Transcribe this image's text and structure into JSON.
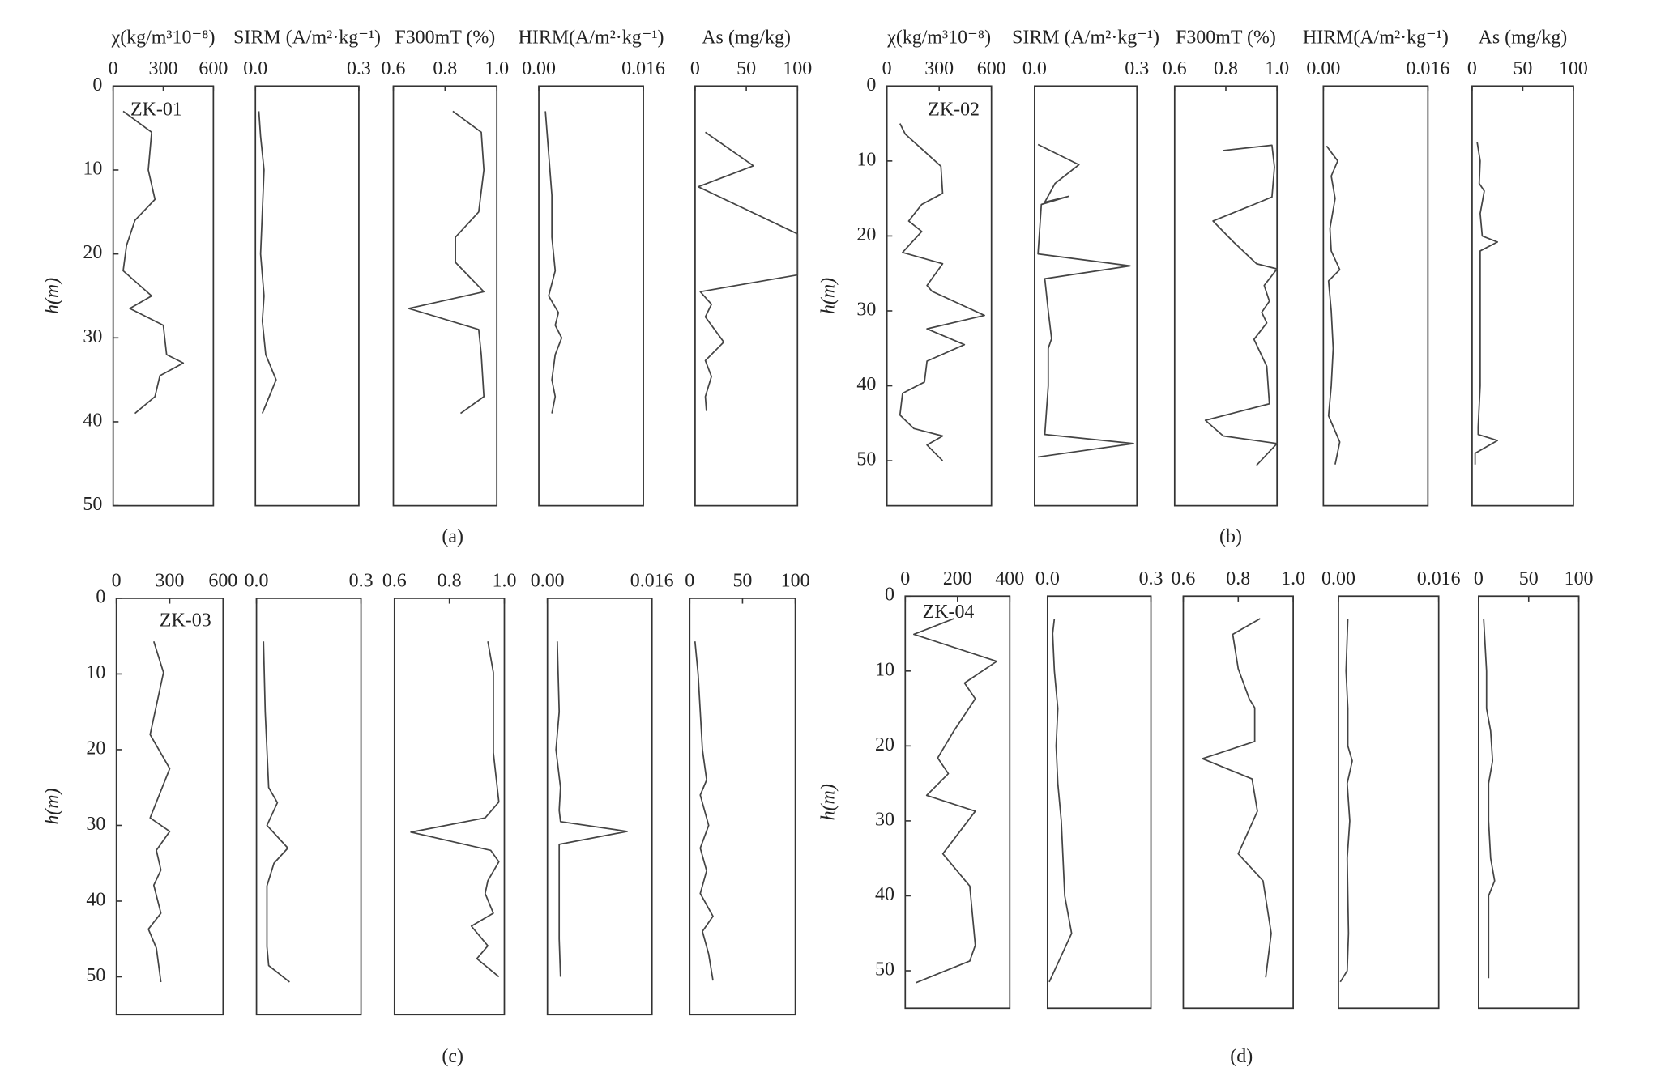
{
  "chart_data": [
    {
      "type": "line",
      "panel": "(a)",
      "well": "ZK-01",
      "ylabel": "h(m)",
      "ylim": [
        0,
        50
      ],
      "yticks": [
        0,
        10,
        20,
        30,
        40,
        50
      ],
      "tracks": [
        {
          "xlabel": "χ(kg/m³10⁻⁸)",
          "xlim": [
            0,
            600
          ],
          "xticks": [
            0,
            300,
            600
          ],
          "depth": [
            3,
            5.5,
            10,
            13.5,
            16,
            19,
            22,
            25,
            26.5,
            28.5,
            32,
            33,
            34.5,
            37,
            39
          ],
          "values": [
            60,
            230,
            210,
            250,
            130,
            80,
            60,
            230,
            100,
            300,
            320,
            420,
            280,
            250,
            130
          ]
        },
        {
          "xlabel": "SIRM (A/m²·kg⁻¹)",
          "xlim": [
            0,
            0.3
          ],
          "xticks": [
            {
              "value": 0,
              "label": "0.0"
            },
            0.3
          ],
          "depth": [
            3,
            6,
            10,
            15,
            20,
            25,
            28,
            32,
            35,
            37,
            39
          ],
          "values": [
            0.01,
            0.015,
            0.025,
            0.02,
            0.015,
            0.025,
            0.02,
            0.03,
            0.06,
            0.04,
            0.02
          ]
        },
        {
          "xlabel": "F300mT (%)",
          "xlim": [
            0.6,
            1.0
          ],
          "xticks": [
            0.6,
            0.8,
            {
              "value": 1.0,
              "label": "1.0"
            }
          ],
          "depth": [
            3,
            5.5,
            10,
            15,
            18,
            21,
            24.5,
            26.5,
            29,
            32,
            37,
            39
          ],
          "values": [
            0.83,
            0.94,
            0.95,
            0.93,
            0.84,
            0.84,
            0.95,
            0.66,
            0.93,
            0.94,
            0.95,
            0.86
          ]
        },
        {
          "xlabel": "HIRM(A/m²·kg⁻¹)",
          "xlim": [
            0,
            0.016
          ],
          "xticks": [
            {
              "value": 0,
              "label": "0.00"
            },
            0.016
          ],
          "depth": [
            3,
            8,
            13,
            18,
            22,
            25,
            27,
            28.5,
            30,
            32,
            35,
            37,
            39
          ],
          "values": [
            0.001,
            0.0015,
            0.002,
            0.002,
            0.0025,
            0.0015,
            0.003,
            0.0025,
            0.0035,
            0.0025,
            0.002,
            0.0025,
            0.002
          ]
        },
        {
          "xlabel": "As (mg/kg)",
          "xlim": [
            0,
            100
          ],
          "xticks": [
            0,
            50,
            100
          ],
          "depth": [
            5.5,
            9.5,
            12,
            17.6,
            22.5,
            24.5,
            26,
            27.5,
            30.5,
            32.7,
            34.6,
            37,
            38.7
          ],
          "values": [
            10,
            57,
            3,
            100,
            100,
            5,
            16,
            10,
            28,
            10,
            16,
            10,
            11
          ]
        }
      ]
    },
    {
      "type": "line",
      "panel": "(b)",
      "well": "ZK-02",
      "ylabel": "h(m)",
      "ylim": [
        0,
        56
      ],
      "yticks": [
        0,
        10,
        20,
        30,
        40,
        50
      ],
      "tracks": [
        {
          "xlabel": "χ(kg/m³10⁻⁸)",
          "xlim": [
            0,
            600
          ],
          "xticks": [
            0,
            300,
            600
          ],
          "depth": [
            5,
            6.4,
            10.7,
            14.3,
            15.8,
            18,
            19.4,
            22.2,
            23.7,
            26.6,
            27.4,
            30.6,
            32.4,
            34.5,
            36.7,
            39.5,
            41,
            43.9,
            45.7,
            46.7,
            47.9,
            50
          ],
          "values": [
            75,
            105,
            310,
            320,
            200,
            125,
            200,
            90,
            320,
            230,
            260,
            560,
            230,
            445,
            230,
            215,
            90,
            75,
            155,
            320,
            230,
            320
          ]
        },
        {
          "xlabel": "SIRM (A/m²·kg⁻¹)",
          "xlim": [
            0,
            0.3
          ],
          "xticks": [
            {
              "value": 0,
              "label": "0.0"
            },
            0.3
          ],
          "depth": [
            7.8,
            10.5,
            13,
            15.5,
            14.7,
            15.8,
            22.4,
            24,
            25.7,
            30,
            33.7,
            35,
            40,
            46.5,
            47.7,
            49.5
          ],
          "values": [
            0.01,
            0.13,
            0.06,
            0.03,
            0.1,
            0.02,
            0.01,
            0.28,
            0.03,
            0.04,
            0.05,
            0.04,
            0.04,
            0.03,
            0.29,
            0.01
          ]
        },
        {
          "xlabel": "F300mT (%)",
          "xlim": [
            0.6,
            1.0
          ],
          "xticks": [
            0.6,
            0.8,
            {
              "value": 1.0,
              "label": "1.0"
            }
          ],
          "depth": [
            8.6,
            7.9,
            10.8,
            14.8,
            15.8,
            18,
            20.8,
            23.7,
            24.4,
            26.6,
            28.7,
            30.2,
            31.6,
            33.8,
            37.4,
            42.4,
            44.6,
            46.7,
            47.7,
            50.6
          ],
          "values": [
            0.79,
            0.98,
            0.99,
            0.98,
            0.91,
            0.75,
            0.83,
            0.92,
            1.0,
            0.95,
            0.97,
            0.94,
            0.96,
            0.91,
            0.96,
            0.97,
            0.72,
            0.79,
            1.0,
            0.92
          ]
        },
        {
          "xlabel": "HIRM(A/m²·kg⁻¹)",
          "xlim": [
            0,
            0.016
          ],
          "xticks": [
            {
              "value": 0,
              "label": "0.00"
            },
            0.016
          ],
          "depth": [
            8,
            10,
            12,
            15,
            19,
            22,
            24.5,
            26,
            30,
            35,
            40,
            44,
            47.5,
            50.5
          ],
          "values": [
            0.0005,
            0.0022,
            0.0012,
            0.0018,
            0.001,
            0.0012,
            0.0025,
            0.0008,
            0.0012,
            0.0015,
            0.0012,
            0.0008,
            0.0025,
            0.0018
          ]
        },
        {
          "xlabel": "As (mg/kg)",
          "xlim": [
            0,
            100
          ],
          "xticks": [
            0,
            50,
            100
          ],
          "depth": [
            7.5,
            10,
            13,
            14,
            17,
            20,
            20.8,
            22,
            30,
            40,
            45.5,
            46.5,
            47.3,
            49,
            50.5
          ],
          "values": [
            5,
            8,
            7,
            12,
            8,
            10,
            25,
            8,
            8,
            8,
            6,
            6,
            25,
            3,
            3
          ]
        }
      ]
    },
    {
      "type": "line",
      "panel": "(c)",
      "well": "ZK-03",
      "ylabel": "h(m)",
      "ylim": [
        0,
        55
      ],
      "yticks": [
        0,
        10,
        20,
        30,
        40,
        50
      ],
      "tracks": [
        {
          "xlim": [
            0,
            600
          ],
          "xticks": [
            0,
            300,
            600
          ],
          "depth": [
            5.7,
            9.8,
            18,
            22.5,
            29,
            30.8,
            33.3,
            35.9,
            37.9,
            41.6,
            43.7,
            46.2,
            50.7
          ],
          "values": [
            210,
            265,
            190,
            300,
            190,
            300,
            225,
            250,
            210,
            250,
            180,
            225,
            250
          ]
        },
        {
          "xlim": [
            0,
            0.3
          ],
          "xticks": [
            {
              "value": 0,
              "label": "0.0"
            },
            0.3
          ],
          "depth": [
            5.7,
            15,
            20,
            25,
            27,
            30,
            33,
            35,
            38,
            42,
            46,
            48.5,
            50.7
          ],
          "values": [
            0.02,
            0.025,
            0.03,
            0.035,
            0.06,
            0.03,
            0.09,
            0.05,
            0.03,
            0.03,
            0.03,
            0.035,
            0.095
          ]
        },
        {
          "xlim": [
            0.6,
            1.0
          ],
          "xticks": [
            0.6,
            0.8,
            {
              "value": 1.0,
              "label": "1.0"
            }
          ],
          "depth": [
            5.7,
            9.8,
            20.4,
            26.9,
            29,
            30.9,
            33.3,
            34.8,
            37.3,
            39,
            41.6,
            43.3,
            45.9,
            47.6,
            50
          ],
          "values": [
            0.94,
            0.96,
            0.96,
            0.98,
            0.93,
            0.66,
            0.95,
            0.98,
            0.94,
            0.93,
            0.96,
            0.88,
            0.94,
            0.9,
            0.98
          ]
        },
        {
          "xlim": [
            0,
            0.016
          ],
          "xticks": [
            {
              "value": 0,
              "label": "0.00"
            },
            0.016
          ],
          "depth": [
            5.7,
            15,
            20,
            25,
            28,
            29.5,
            30.8,
            32.5,
            35,
            40,
            45,
            50
          ],
          "values": [
            0.0015,
            0.0018,
            0.0013,
            0.002,
            0.0018,
            0.002,
            0.0122,
            0.0018,
            0.0018,
            0.0018,
            0.0018,
            0.002
          ]
        },
        {
          "xlim": [
            0,
            100
          ],
          "xticks": [
            0,
            50,
            100
          ],
          "depth": [
            5.7,
            10,
            15,
            20,
            24,
            26,
            30,
            33,
            36,
            39,
            42,
            44,
            47,
            50.5
          ],
          "values": [
            5,
            8,
            10,
            12,
            16,
            10,
            18,
            10,
            16,
            10,
            22,
            12,
            18,
            22
          ]
        }
      ]
    },
    {
      "type": "line",
      "panel": "(d)",
      "well": "ZK-04",
      "ylabel": "h(m)",
      "ylim": [
        0,
        55
      ],
      "yticks": [
        0,
        10,
        20,
        30,
        40,
        50
      ],
      "tracks": [
        {
          "xlim": [
            0,
            400
          ],
          "xticks": [
            0,
            200,
            400
          ],
          "depth": [
            3,
            5.1,
            8.7,
            11.6,
            13.7,
            18,
            21.6,
            23.7,
            26.6,
            28.7,
            34.4,
            38.7,
            46.6,
            48.7,
            51.6
          ],
          "values": [
            186,
            33,
            350,
            227,
            268,
            186,
            124,
            165,
            82,
            268,
            144,
            247,
            268,
            247,
            41
          ]
        },
        {
          "xlim": [
            0,
            0.3
          ],
          "xticks": [
            {
              "value": 0,
              "label": "0.0"
            },
            0.3
          ],
          "depth": [
            3,
            5,
            10,
            15,
            20,
            25,
            30,
            35,
            40,
            45,
            48,
            51.5
          ],
          "values": [
            0.02,
            0.015,
            0.02,
            0.03,
            0.025,
            0.03,
            0.04,
            0.045,
            0.05,
            0.07,
            0.04,
            0.005
          ]
        },
        {
          "xlim": [
            0.6,
            1.0
          ],
          "xticks": [
            0.6,
            0.8,
            {
              "value": 1.0,
              "label": "1.0"
            }
          ],
          "depth": [
            3,
            5.1,
            9.7,
            13.7,
            14.9,
            19.4,
            21.7,
            24.4,
            28.7,
            34.4,
            38,
            45,
            50.9
          ],
          "values": [
            0.88,
            0.78,
            0.8,
            0.84,
            0.86,
            0.86,
            0.67,
            0.85,
            0.87,
            0.8,
            0.89,
            0.92,
            0.9
          ]
        },
        {
          "xlim": [
            0,
            0.016
          ],
          "xticks": [
            {
              "value": 0,
              "label": "0.00"
            },
            0.016
          ],
          "depth": [
            3,
            10,
            15,
            20,
            22,
            25,
            30,
            35,
            40,
            45,
            50,
            51.5
          ],
          "values": [
            0.0015,
            0.0012,
            0.0015,
            0.0015,
            0.0022,
            0.0014,
            0.0018,
            0.0014,
            0.0015,
            0.0016,
            0.0014,
            0.0003
          ]
        },
        {
          "xlim": [
            0,
            100
          ],
          "xticks": [
            0,
            50,
            100
          ],
          "depth": [
            3,
            10,
            15,
            18,
            22,
            25,
            30,
            35,
            38,
            40,
            45,
            51
          ],
          "values": [
            5,
            8,
            8,
            12,
            14,
            10,
            10,
            12,
            16,
            10,
            10,
            10
          ]
        }
      ]
    }
  ]
}
